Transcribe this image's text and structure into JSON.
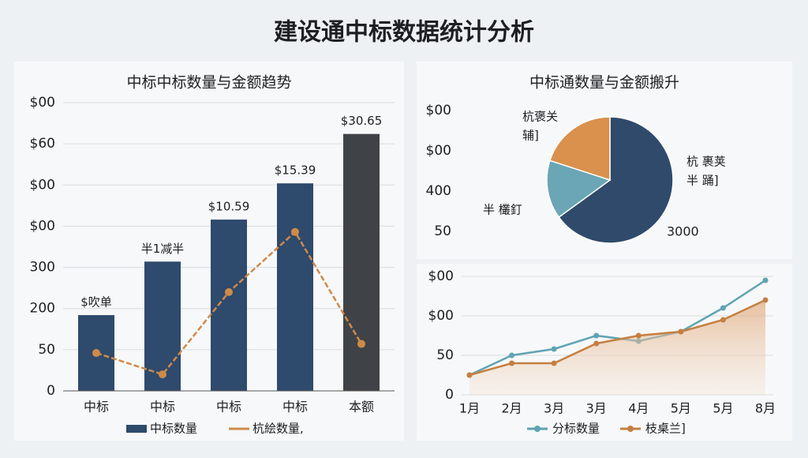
{
  "title": "建设通中标数据统计分析",
  "chart_data": [
    {
      "type": "bar",
      "title": "中标中标数量与金额趋势",
      "categories": [
        "中标",
        "中标",
        "中标",
        "中标",
        "本额"
      ],
      "series": [
        {
          "name": "中标数量",
          "color": "#2e4a6c",
          "colors": [
            "#2e4a6c",
            "#2e4a6c",
            "#2e4a6c",
            "#2e4a6c",
            "#3f4347"
          ],
          "values": [
            92,
            157,
            208,
            252,
            312
          ],
          "value_labels": [
            "$吹单",
            "半1减半",
            "$10.59",
            "$15.39",
            "$30.65"
          ]
        },
        {
          "name": "杭絵数量,",
          "type": "line",
          "color": "#d08a48",
          "values": [
            46,
            20,
            120,
            193,
            57
          ]
        }
      ],
      "ylim": [
        0,
        350
      ],
      "yticks": [
        0,
        50,
        {
          "value": 100,
          "label": "200"
        },
        {
          "value": 150,
          "label": "300"
        },
        {
          "value": 200,
          "label": "$00"
        },
        {
          "value": 250,
          "label": "$00"
        },
        {
          "value": 300,
          "label": "$60"
        },
        {
          "value": 350,
          "label": "$00"
        }
      ],
      "grid": true
    },
    {
      "type": "pie",
      "title": "中标通数量与金额搬升",
      "values": [
        65,
        15,
        20
      ],
      "colors": [
        "#2f4a6b",
        "#6aa6b5",
        "#d9914d"
      ],
      "labels": [
        [
          "杭 裹荚",
          "半 踊]"
        ],
        [
          "半 欉釘"
        ],
        [
          "杭褒关",
          "辅]"
        ]
      ],
      "annotation": "3000",
      "side_labels": [
        "$00",
        "$00",
        "400",
        "50"
      ]
    },
    {
      "type": "line",
      "categories": [
        "1月",
        "2月",
        "3月",
        "3月",
        "4月",
        "5月",
        "5月",
        "8月"
      ],
      "series": [
        {
          "name": "分标数量",
          "color": "#5fa3b3",
          "values": [
            25,
            50,
            58,
            75,
            68,
            80,
            110,
            145
          ]
        },
        {
          "name": "枝桌兰]",
          "color": "#c57f40",
          "area": true,
          "values": [
            25,
            40,
            40,
            65,
            75,
            80,
            95,
            120
          ]
        }
      ],
      "ylim": [
        0,
        150
      ],
      "yticks": [
        0,
        50,
        {
          "value": 100,
          "label": "$00"
        },
        {
          "value": 150,
          "label": "$00"
        }
      ],
      "grid": true
    }
  ]
}
